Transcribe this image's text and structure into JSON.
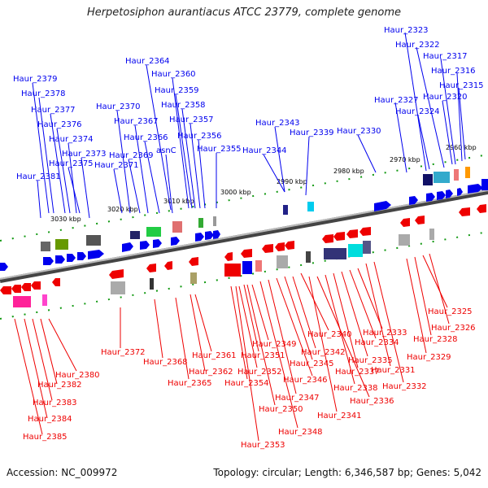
{
  "title": "Herpetosiphon aurantiacus ATCC 23779, complete genome",
  "footer": {
    "accession": "Accession: NC_009972",
    "summary": "Topology: circular; Length: 6,346,587 bp; Genes: 5,042"
  },
  "scale_labels": [
    "3030 kbp",
    "3020 kbp",
    "3010 kbp",
    "3000 kbp",
    "2990 kbp",
    "2980 kbp",
    "2970 kbp",
    "2960 kbp"
  ],
  "colors": {
    "forward_strand": "#0000ee",
    "reverse_strand": "#ee0000",
    "backbone": "#888888",
    "tick": "#119911"
  },
  "top_labels": [
    "Haur_2379",
    "Haur_2378",
    "Haur_2377",
    "Haur_2376",
    "Haur_2374",
    "Haur_2373",
    "Haur_2375",
    "Haur_2381",
    "Haur_2370",
    "Haur_2367",
    "Haur_2369",
    "Haur_2371",
    "Haur_2366",
    "asnC",
    "Haur_2364",
    "Haur_2360",
    "Haur_2359",
    "Haur_2358",
    "Haur_2357",
    "Haur_2356",
    "Haur_2355",
    "Haur_2343",
    "Haur_2344",
    "Haur_2339",
    "Haur_2330",
    "Haur_2323",
    "Haur_2322",
    "Haur_2317",
    "Haur_2316",
    "Haur_2315",
    "Haur_2320",
    "Haur_2327",
    "Haur_2324"
  ],
  "bottom_labels": [
    "Haur_2380",
    "Haur_2382",
    "Haur_2383",
    "Haur_2384",
    "Haur_2385",
    "Haur_2372",
    "Haur_2368",
    "Haur_2365",
    "Haur_2362",
    "Haur_2361",
    "Haur_2349",
    "Haur_2351",
    "Haur_2352",
    "Haur_2354",
    "Haur_2350",
    "Haur_2353",
    "Haur_2340",
    "Haur_2342",
    "Haur_2345",
    "Haur_2346",
    "Haur_2347",
    "Haur_2348",
    "Haur_2333",
    "Haur_2334",
    "Haur_2335",
    "Haur_2337",
    "Haur_2338",
    "Haur_2336",
    "Haur_2341",
    "Haur_2325",
    "Haur_2326",
    "Haur_2328",
    "Haur_2329",
    "Haur_2331",
    "Haur_2332"
  ]
}
